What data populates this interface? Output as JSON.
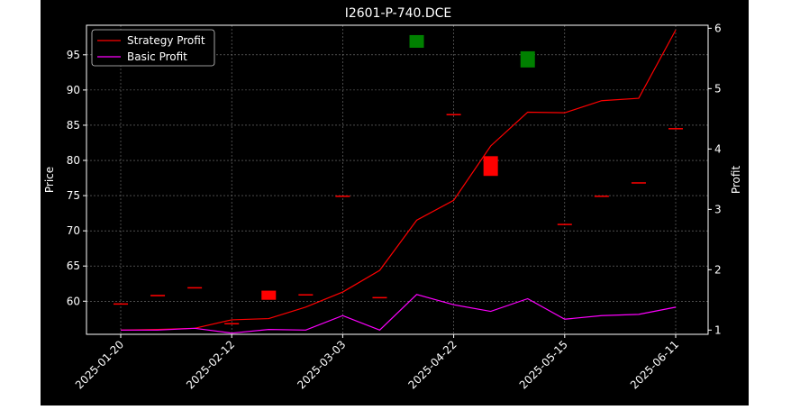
{
  "chart_data": {
    "type": "line",
    "title": "I2601-P-740.DCE",
    "ylabel": "Price",
    "y2label": "Profit",
    "xlabel": "",
    "ylim": [
      55.3,
      99.2
    ],
    "y2lim": [
      0.93,
      6.05
    ],
    "x_ticks": [
      "2025-01-20",
      "2025-02-12",
      "2025-03-03",
      "2025-04-22",
      "2025-05-15",
      "2025-06-11"
    ],
    "y_ticks": [
      60,
      65,
      70,
      75,
      80,
      85,
      90,
      95
    ],
    "y2_ticks": [
      1,
      2,
      3,
      4,
      5,
      6
    ],
    "grid": true,
    "legend_position": "top-left",
    "background": "#000000",
    "series": [
      {
        "name": "Strategy Profit",
        "axis": "right",
        "color": "#ff0000",
        "x": [
          0,
          1,
          2,
          3,
          4,
          5,
          6,
          7,
          8,
          9,
          10,
          11,
          12,
          13,
          14,
          15
        ],
        "values": [
          1.0,
          1.01,
          1.03,
          1.17,
          1.19,
          1.38,
          1.63,
          1.99,
          2.82,
          3.15,
          4.05,
          4.61,
          4.6,
          4.8,
          4.84,
          5.97
        ]
      },
      {
        "name": "Basic Profit",
        "axis": "right",
        "color": "#ff00ff",
        "x": [
          0,
          1,
          2,
          3,
          4,
          5,
          6,
          7,
          8,
          9,
          10,
          11,
          12,
          13,
          14,
          15
        ],
        "values": [
          1.0,
          1.0,
          1.03,
          0.95,
          1.01,
          1.0,
          1.24,
          1.0,
          1.59,
          1.42,
          1.31,
          1.52,
          1.18,
          1.24,
          1.26,
          1.38
        ]
      }
    ],
    "candles": [
      {
        "x": 0,
        "open": 59.7,
        "close": 59.7,
        "color": "#ff0000"
      },
      {
        "x": 1,
        "open": 60.7,
        "close": 60.9,
        "color": "#ff0000"
      },
      {
        "x": 2,
        "open": 62.0,
        "close": 62.0,
        "color": "#ff0000"
      },
      {
        "x": 3,
        "open": 56.9,
        "close": 56.9,
        "color": "#ff0000"
      },
      {
        "x": 4,
        "open": 61.5,
        "close": 60.2,
        "color": "#ff0000"
      },
      {
        "x": 5,
        "open": 61.0,
        "close": 61.0,
        "color": "#ff0000"
      },
      {
        "x": 6,
        "open": 75.0,
        "close": 75.0,
        "color": "#ff0000"
      },
      {
        "x": 7,
        "open": 60.6,
        "close": 60.6,
        "color": "#ff0000"
      },
      {
        "x": 8,
        "open": 96.0,
        "close": 97.8,
        "color": "#008000"
      },
      {
        "x": 9,
        "open": 86.6,
        "close": 86.6,
        "color": "#ff0000"
      },
      {
        "x": 10,
        "open": 80.6,
        "close": 77.8,
        "color": "#ff0000"
      },
      {
        "x": 11,
        "open": 93.2,
        "close": 95.5,
        "color": "#008000"
      },
      {
        "x": 12,
        "open": 71.0,
        "close": 71.0,
        "color": "#ff0000"
      },
      {
        "x": 13,
        "open": 75.0,
        "close": 75.0,
        "color": "#ff0000"
      },
      {
        "x": 14,
        "open": 76.9,
        "close": 76.9,
        "color": "#ff0000"
      },
      {
        "x": 15,
        "open": 84.6,
        "close": 84.6,
        "color": "#ff0000"
      }
    ]
  }
}
